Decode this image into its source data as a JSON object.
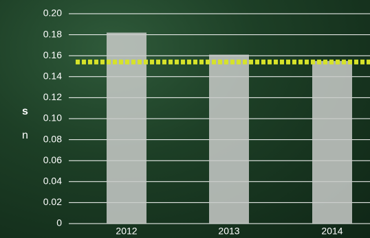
{
  "chart_data": {
    "type": "bar",
    "categories": [
      "2012",
      "2013",
      "2014"
    ],
    "values": [
      0.182,
      0.161,
      0.155
    ],
    "color": "#c9cbc9",
    "ylim": [
      0,
      0.2
    ],
    "yticks": [
      0,
      0.02,
      0.04,
      0.06,
      0.08,
      {
        "value": 0.1,
        "label": "0.10"
      },
      0.12,
      0.14,
      0.16,
      0.18,
      {
        "value": 0.2,
        "label": "0.20"
      }
    ],
    "grid": true,
    "reference_line": {
      "value": 0.154,
      "color": "#d6e22a"
    }
  },
  "sidebar": {
    "lines": [
      "s",
      "n"
    ]
  }
}
